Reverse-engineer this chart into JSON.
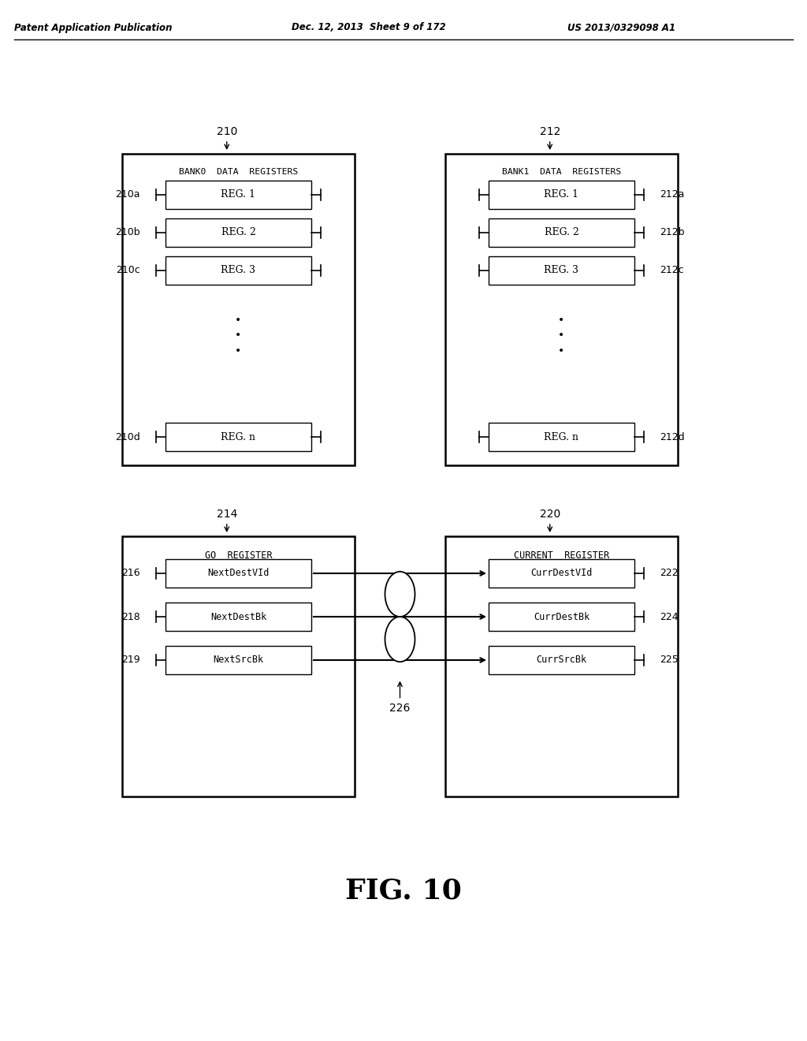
{
  "bg_color": "#ffffff",
  "header_left": "Patent Application Publication",
  "header_mid": "Dec. 12, 2013  Sheet 9 of 172",
  "header_right": "US 2013/0329098 A1",
  "fig_label": "FIG. 10",
  "bank0_label": "210",
  "bank0_title": "BANK0  DATA  REGISTERS",
  "bank0_regs": [
    "REG. 1",
    "REG. 2",
    "REG. 3",
    "REG. n"
  ],
  "bank0_reg_labels": [
    "210a",
    "210b",
    "210c",
    "210d"
  ],
  "bank1_label": "212",
  "bank1_title": "BANK1  DATA  REGISTERS",
  "bank1_regs": [
    "REG. 1",
    "REG. 2",
    "REG. 3",
    "REG. n"
  ],
  "bank1_reg_labels": [
    "212a",
    "212b",
    "212c",
    "212d"
  ],
  "go_label": "214",
  "go_title": "GO  REGISTER",
  "go_regs": [
    "NextDestVId",
    "NextDestBk",
    "NextSrcBk"
  ],
  "go_reg_labels": [
    "216",
    "218",
    "219"
  ],
  "curr_label": "220",
  "curr_title": "CURRENT  REGISTER",
  "curr_regs": [
    "CurrDestVId",
    "CurrDestBk",
    "CurrSrcBk"
  ],
  "curr_reg_labels": [
    "222",
    "224",
    "225"
  ],
  "conn_label": "226"
}
